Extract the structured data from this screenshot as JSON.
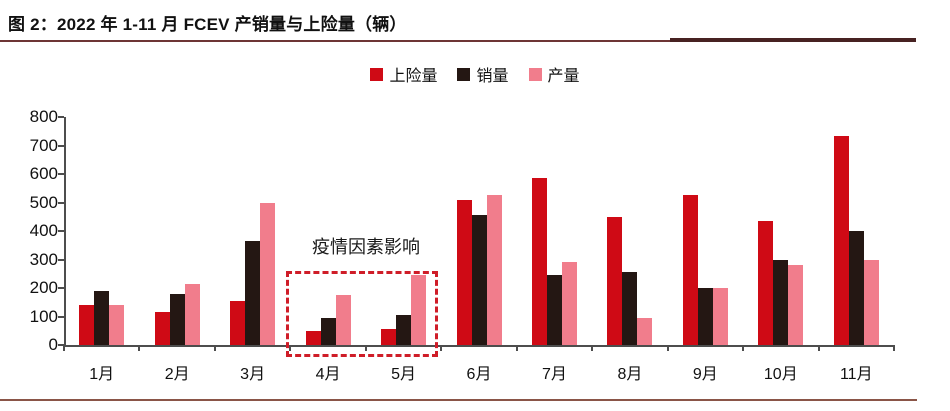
{
  "title": "图 2：2022 年 1-11 月 FCEV 产销量与上险量（辆）",
  "annotation": "疫情因素影响",
  "colors": {
    "insured_red": "#cf0a15",
    "sales_black": "#241713",
    "production_pink": "#f17d8c",
    "axis": "#4d4d4d",
    "dashed_box": "#cf1d28",
    "title_rule_thin": "#6d3535",
    "title_rule_thick": "#472222",
    "bottom_rule": "#8a5548"
  },
  "chart_data": {
    "type": "bar",
    "title": "2022 年 1-11 月 FCEV 产销量与上险量（辆）",
    "categories": [
      "1月",
      "2月",
      "3月",
      "4月",
      "5月",
      "6月",
      "7月",
      "8月",
      "9月",
      "10月",
      "11月"
    ],
    "series": [
      {
        "name": "上险量",
        "color": "#cf0a15",
        "values": [
          140,
          115,
          155,
          50,
          55,
          510,
          585,
          450,
          525,
          435,
          735
        ]
      },
      {
        "name": "销量",
        "color": "#241713",
        "values": [
          190,
          180,
          365,
          95,
          105,
          455,
          245,
          255,
          200,
          300,
          400
        ]
      },
      {
        "name": "产量",
        "color": "#f17d8c",
        "values": [
          140,
          215,
          500,
          175,
          245,
          525,
          290,
          95,
          200,
          280,
          300
        ]
      }
    ],
    "xlabel": "",
    "ylabel": "",
    "ylim": [
      0,
      800
    ],
    "ytick_step": 100,
    "grid": false,
    "legend_position": "top-center",
    "annotation_text": "疫情因素影响",
    "annotation_box_over": [
      "4月",
      "5月"
    ]
  }
}
